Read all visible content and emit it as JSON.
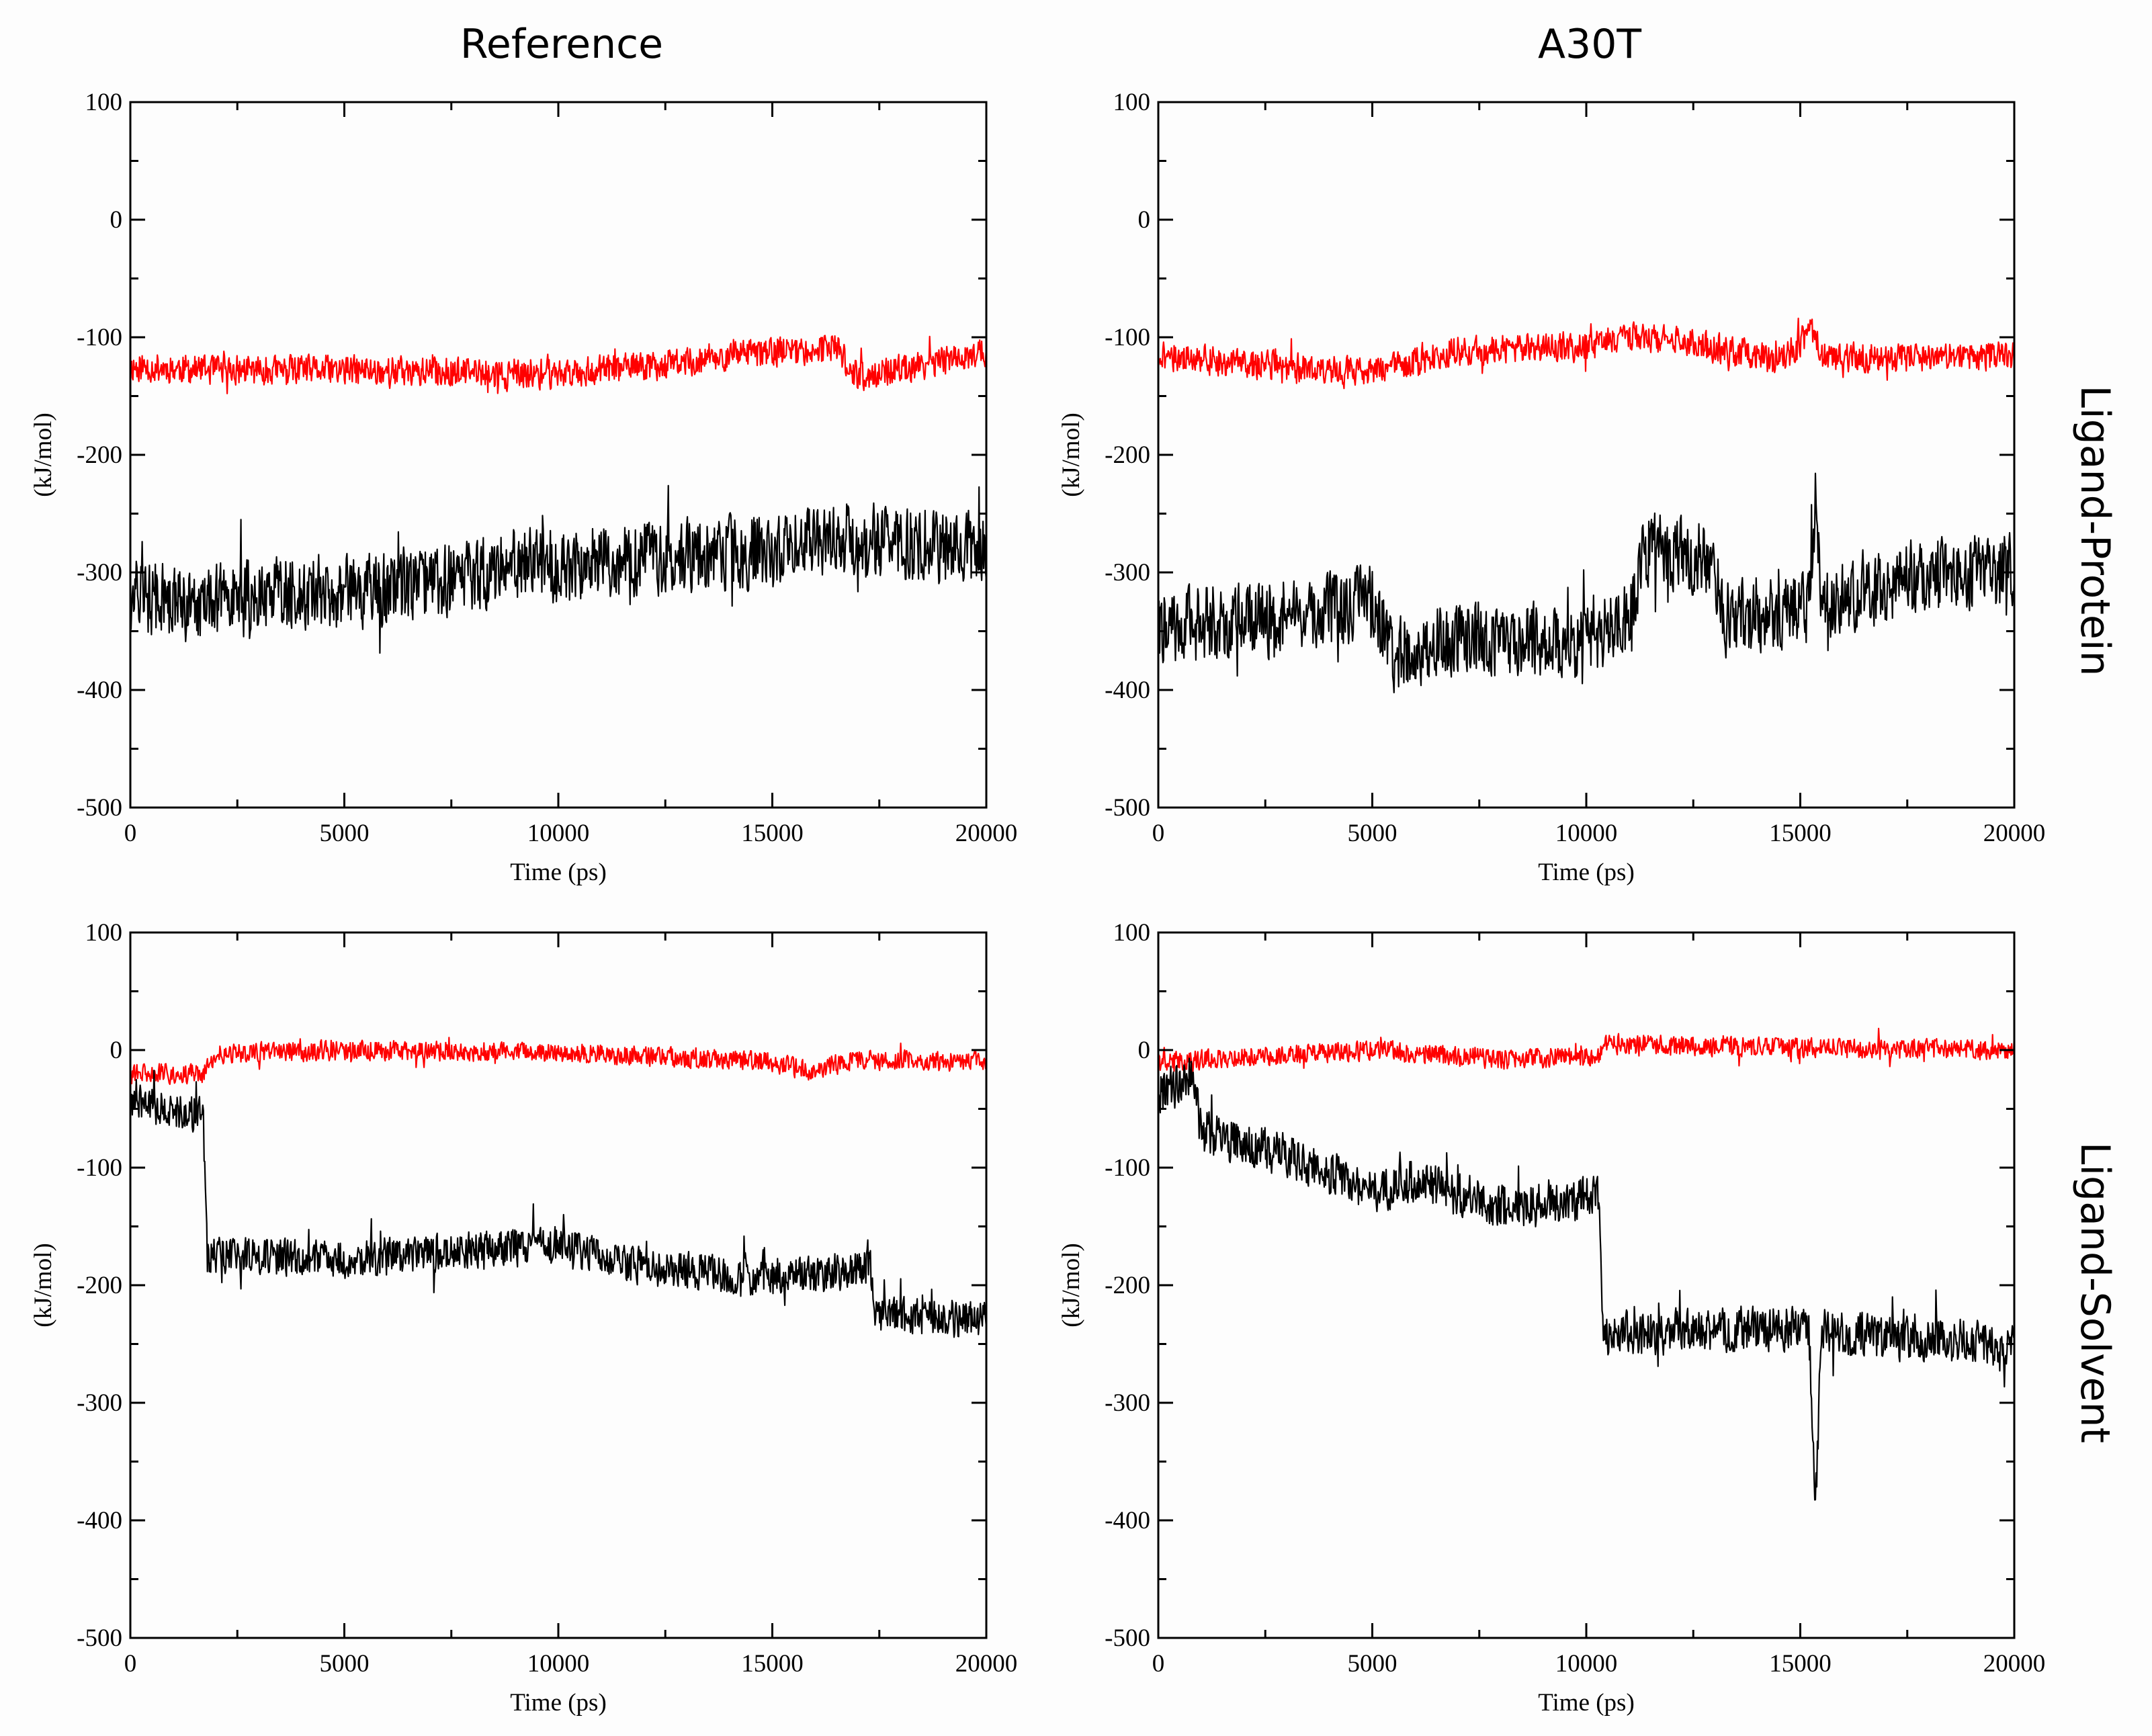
{
  "column_titles": [
    "Reference",
    "A30T"
  ],
  "row_titles": [
    "Ligand-Protein",
    "Ligand-Solvent"
  ],
  "colors": {
    "series_red": "#ff0000",
    "series_black": "#000000",
    "background": "#ffffff"
  },
  "chart_data": [
    {
      "type": "line",
      "panel": "Reference / Ligand-Protein",
      "xlabel": "Time (ps)",
      "ylabel": "(kJ/mol)",
      "xlim": [
        0,
        20000
      ],
      "ylim": [
        -500,
        100
      ],
      "xticks": [
        "0",
        "5000",
        "10000",
        "15000",
        "20000"
      ],
      "yticks": [
        "100",
        "0",
        "-100",
        "-200",
        "-300",
        "-400",
        "-500"
      ],
      "series": [
        {
          "name": "red",
          "color": "#ff0000",
          "noise": 12,
          "spike": 14,
          "seed": 11,
          "x": [
            0,
            2000,
            5000,
            8000,
            9000,
            12000,
            15000,
            16500,
            17000,
            20000
          ],
          "y": [
            -125,
            -128,
            -128,
            -130,
            -133,
            -125,
            -112,
            -110,
            -135,
            -112
          ]
        },
        {
          "name": "black",
          "color": "#000000",
          "noise": 30,
          "spike": 40,
          "seed": 12,
          "x": [
            0,
            1500,
            3000,
            5000,
            8000,
            9000,
            12000,
            15000,
            16000,
            20000
          ],
          "y": [
            -318,
            -330,
            -315,
            -318,
            -302,
            -295,
            -288,
            -282,
            -270,
            -280
          ]
        }
      ]
    },
    {
      "type": "line",
      "panel": "A30T / Ligand-Protein",
      "xlabel": "Time (ps)",
      "ylabel": "(kJ/mol)",
      "xlim": [
        0,
        20000
      ],
      "ylim": [
        -500,
        100
      ],
      "xticks": [
        "0",
        "5000",
        "10000",
        "15000",
        "20000"
      ],
      "yticks": [
        "100",
        "0",
        "-100",
        "-200",
        "-300",
        "-400",
        "-500"
      ],
      "series": [
        {
          "name": "red",
          "color": "#ff0000",
          "noise": 12,
          "spike": 14,
          "seed": 21,
          "x": [
            0,
            3000,
            5000,
            7000,
            10000,
            11000,
            12500,
            14500,
            15300,
            15500,
            17000,
            20000
          ],
          "y": [
            -115,
            -125,
            -130,
            -112,
            -108,
            -100,
            -105,
            -120,
            -95,
            -115,
            -118,
            -115
          ]
        },
        {
          "name": "black",
          "color": "#000000",
          "noise": 30,
          "spike": 40,
          "seed": 22,
          "x": [
            0,
            3000,
            5000,
            5500,
            7000,
            10000,
            11000,
            11400,
            13000,
            13200,
            15200,
            15350,
            15500,
            18000,
            20000
          ],
          "y": [
            -345,
            -340,
            -325,
            -370,
            -355,
            -360,
            -340,
            -280,
            -290,
            -340,
            -330,
            -240,
            -330,
            -300,
            -300
          ]
        }
      ]
    },
    {
      "type": "line",
      "panel": "Reference / Ligand-Solvent",
      "xlabel": "Time (ps)",
      "ylabel": "(kJ/mol)",
      "xlim": [
        0,
        20000
      ],
      "ylim": [
        -500,
        100
      ],
      "xticks": [
        "0",
        "5000",
        "10000",
        "15000",
        "20000"
      ],
      "yticks": [
        "100",
        "0",
        "-100",
        "-200",
        "-300",
        "-400",
        "-500"
      ],
      "series": [
        {
          "name": "red",
          "color": "#ff0000",
          "noise": 8,
          "spike": 12,
          "seed": 31,
          "x": [
            0,
            1700,
            2000,
            5000,
            10000,
            15000,
            15800,
            17000,
            20000
          ],
          "y": [
            -20,
            -20,
            -3,
            0,
            -2,
            -10,
            -18,
            -8,
            -10
          ]
        },
        {
          "name": "black",
          "color": "#000000",
          "noise": 15,
          "spike": 25,
          "seed": 32,
          "x": [
            0,
            1700,
            1800,
            5000,
            10000,
            12000,
            15000,
            17300,
            17400,
            20000
          ],
          "y": [
            -45,
            -55,
            -175,
            -178,
            -165,
            -185,
            -195,
            -185,
            -225,
            -230
          ]
        }
      ]
    },
    {
      "type": "line",
      "panel": "A30T / Ligand-Solvent",
      "xlabel": "Time (ps)",
      "ylabel": "(kJ/mol)",
      "xlim": [
        0,
        20000
      ],
      "ylim": [
        -500,
        100
      ],
      "xticks": [
        "0",
        "5000",
        "10000",
        "15000",
        "20000"
      ],
      "yticks": [
        "100",
        "0",
        "-100",
        "-200",
        "-300",
        "-400",
        "-500"
      ],
      "series": [
        {
          "name": "red",
          "color": "#ff0000",
          "noise": 8,
          "spike": 12,
          "seed": 41,
          "x": [
            0,
            5000,
            8000,
            10300,
            10400,
            15000,
            20000
          ],
          "y": [
            -10,
            0,
            -8,
            -5,
            5,
            2,
            0
          ]
        },
        {
          "name": "black",
          "color": "#000000",
          "noise": 18,
          "spike": 28,
          "seed": 42,
          "x": [
            0,
            800,
            1000,
            3000,
            5000,
            6000,
            8000,
            10300,
            10400,
            12000,
            15200,
            15350,
            15500,
            17000,
            20000
          ],
          "y": [
            -40,
            -20,
            -70,
            -90,
            -120,
            -110,
            -135,
            -125,
            -240,
            -240,
            -235,
            -390,
            -240,
            -245,
            -250
          ]
        }
      ]
    }
  ]
}
